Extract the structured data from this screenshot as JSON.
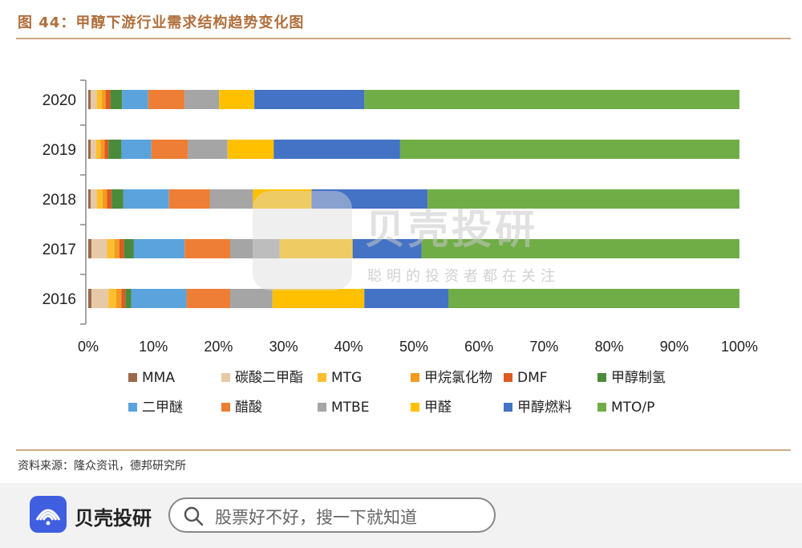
{
  "figure_title": "图 44：甲醇下游行业需求结构趋势变化图",
  "source_note": "资料来源：隆众资讯，德邦研究所",
  "watermark": {
    "name": "贝壳投研",
    "slogan": "聪明的投资者都在关注"
  },
  "footer": {
    "brand": "贝壳投研",
    "search_placeholder": "股票好不好，搜一下就知道"
  },
  "colors": {
    "title": "#b06f3c",
    "rule": "#c9a886",
    "brand": "#3f5fe0"
  },
  "chart_data": {
    "type": "bar",
    "orientation": "horizontal",
    "stacked": true,
    "percent": true,
    "categories": [
      "2020",
      "2019",
      "2018",
      "2017",
      "2016"
    ],
    "x_ticks": [
      "0%",
      "10%",
      "20%",
      "30%",
      "40%",
      "50%",
      "60%",
      "70%",
      "80%",
      "90%",
      "100%"
    ],
    "xlim": [
      0,
      100
    ],
    "grid": false,
    "legend_position": "bottom",
    "series": [
      {
        "name": "MMA",
        "color": "#9c6a4a",
        "values": [
          0.4,
          0.4,
          0.4,
          0.5,
          0.5
        ]
      },
      {
        "name": "碳酸二甲酯",
        "color": "#e6c9a6",
        "values": [
          0.9,
          0.8,
          0.9,
          2.4,
          2.6
        ]
      },
      {
        "name": "MTG",
        "color": "#fdbf2d",
        "values": [
          0.8,
          0.7,
          0.9,
          1.1,
          1.2
        ]
      },
      {
        "name": "甲烷氯化物",
        "color": "#f39a22",
        "values": [
          0.6,
          0.6,
          0.7,
          0.8,
          0.8
        ]
      },
      {
        "name": "DMF",
        "color": "#de5a23",
        "values": [
          0.7,
          0.6,
          0.7,
          0.7,
          0.6
        ]
      },
      {
        "name": "甲醇制氢",
        "color": "#4a8a3b",
        "values": [
          1.8,
          2.0,
          1.8,
          1.5,
          0.9
        ]
      },
      {
        "name": "二甲醚",
        "color": "#5aa3dd",
        "values": [
          4.0,
          4.6,
          7.0,
          7.8,
          8.5
        ]
      },
      {
        "name": "醋酸",
        "color": "#ee7e35",
        "values": [
          5.6,
          5.6,
          6.3,
          7.0,
          6.7
        ]
      },
      {
        "name": "MTBE",
        "color": "#a5a5a5",
        "values": [
          5.3,
          6.1,
          6.6,
          7.6,
          6.5
        ]
      },
      {
        "name": "甲醛",
        "color": "#ffc000",
        "values": [
          5.4,
          7.1,
          9.0,
          11.2,
          14.1
        ]
      },
      {
        "name": "甲醇燃料",
        "color": "#4472c4",
        "values": [
          16.9,
          19.4,
          17.8,
          10.6,
          12.9
        ]
      },
      {
        "name": "MTO/P",
        "color": "#70ad47",
        "values": [
          57.6,
          52.1,
          47.9,
          48.8,
          44.7
        ]
      }
    ]
  }
}
